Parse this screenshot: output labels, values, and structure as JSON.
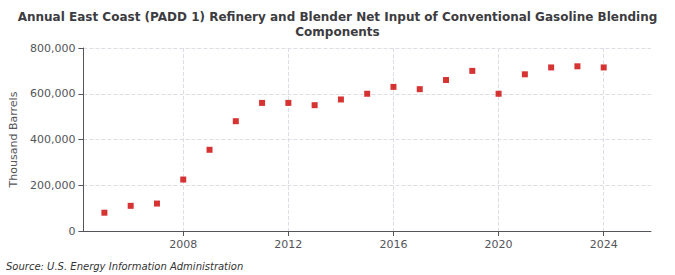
{
  "chart_data": {
    "type": "scatter",
    "title": "Annual East Coast (PADD 1) Refinery and Blender Net Input of Conventional Gasoline Blending\nComponents",
    "ylabel": "Thousand Barrels",
    "annotation": "Source: U.S. Energy Information Administration",
    "x": [
      2005,
      2006,
      2007,
      2008,
      2009,
      2010,
      2011,
      2012,
      2013,
      2014,
      2015,
      2016,
      2017,
      2018,
      2019,
      2020,
      2021,
      2022,
      2023,
      2024
    ],
    "values": [
      80000,
      110000,
      120000,
      225000,
      355000,
      480000,
      560000,
      560000,
      550000,
      575000,
      600000,
      630000,
      620000,
      660000,
      700000,
      600000,
      685000,
      715000,
      720000,
      715000
    ],
    "color": "#cc0000",
    "marker": "square",
    "xlim": [
      2004.2,
      2025.8
    ],
    "xticks": [
      2008,
      2012,
      2016,
      2020,
      2024
    ],
    "ylim": [
      0,
      800000
    ],
    "yticks": [
      0,
      {
        "value": 200000,
        "label": "200,000"
      },
      {
        "value": 400000,
        "label": "400,000"
      },
      {
        "value": 600000,
        "label": "600,000"
      },
      {
        "value": 800000,
        "label": "800,000"
      }
    ],
    "grid": true
  }
}
